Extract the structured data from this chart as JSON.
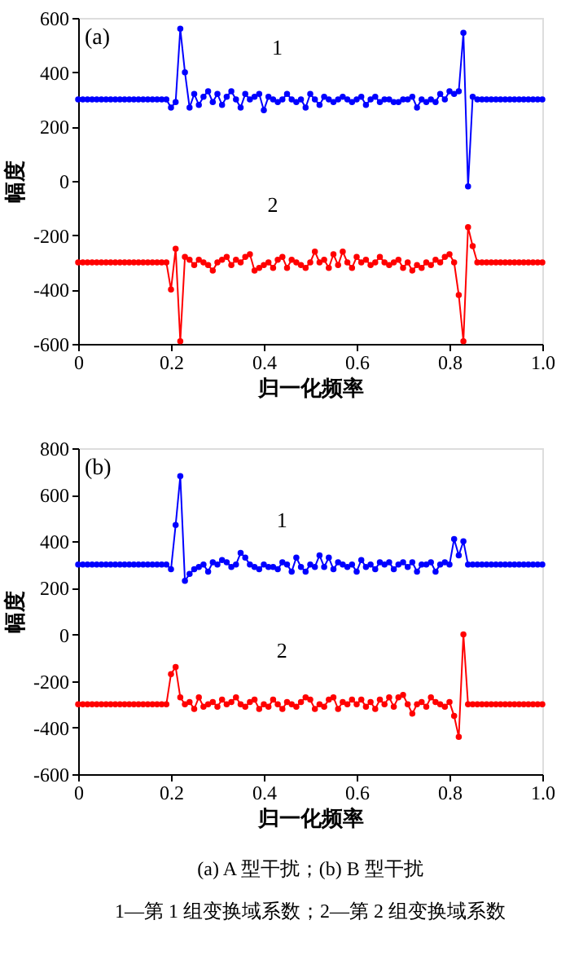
{
  "chart_data": [
    {
      "type": "line",
      "title": "(a)",
      "xlabel": "归一化频率",
      "ylabel": "幅度",
      "marker": "circle",
      "grid": false,
      "xlim": [
        0,
        1.0
      ],
      "xticks": [
        0,
        0.2,
        0.4,
        0.6,
        0.8,
        {
          "value": 1.0,
          "label": "1.0"
        }
      ],
      "ylim": [
        -600,
        600
      ],
      "yticks": [
        -600,
        -400,
        -200,
        0,
        200,
        400,
        600
      ],
      "x": [
        0,
        0.01,
        0.02,
        0.03,
        0.04,
        0.05,
        0.06,
        0.07,
        0.08,
        0.09,
        0.1,
        0.11,
        0.12,
        0.13,
        0.14,
        0.15,
        0.16,
        0.17,
        0.18,
        0.19,
        0.2,
        0.21,
        0.22,
        0.23,
        0.24,
        0.25,
        0.26,
        0.27,
        0.28,
        0.29,
        0.3,
        0.31,
        0.32,
        0.33,
        0.34,
        0.35,
        0.36,
        0.37,
        0.38,
        0.39,
        0.4,
        0.41,
        0.42,
        0.43,
        0.44,
        0.45,
        0.46,
        0.47,
        0.48,
        0.49,
        0.5,
        0.51,
        0.52,
        0.53,
        0.54,
        0.55,
        0.56,
        0.57,
        0.58,
        0.59,
        0.6,
        0.61,
        0.62,
        0.63,
        0.64,
        0.65,
        0.66,
        0.67,
        0.68,
        0.69,
        0.7,
        0.71,
        0.72,
        0.73,
        0.74,
        0.75,
        0.76,
        0.77,
        0.78,
        0.79,
        0.8,
        0.81,
        0.82,
        0.83,
        0.84,
        0.85,
        0.86,
        0.87,
        0.88,
        0.89,
        0.9,
        0.91,
        0.92,
        0.93,
        0.94,
        0.95,
        0.96,
        0.97,
        0.98,
        0.99,
        1.0
      ],
      "series": [
        {
          "color": "#0000ff",
          "values": [
            300,
            300,
            300,
            300,
            300,
            300,
            300,
            300,
            300,
            300,
            300,
            300,
            300,
            300,
            300,
            300,
            300,
            300,
            300,
            300,
            270,
            290,
            560,
            400,
            270,
            320,
            280,
            310,
            330,
            290,
            320,
            280,
            310,
            330,
            300,
            270,
            320,
            300,
            310,
            320,
            260,
            310,
            300,
            290,
            300,
            320,
            300,
            290,
            300,
            270,
            320,
            300,
            280,
            310,
            300,
            290,
            300,
            310,
            300,
            290,
            300,
            310,
            280,
            300,
            310,
            290,
            300,
            300,
            290,
            290,
            300,
            300,
            310,
            270,
            300,
            290,
            300,
            290,
            320,
            300,
            330,
            320,
            330,
            545,
            -20,
            310,
            300,
            300,
            300,
            300,
            300,
            300,
            300,
            300,
            300,
            300,
            300,
            300,
            300,
            300,
            300
          ]
        },
        {
          "color": "#ff0000",
          "values": [
            -300,
            -300,
            -300,
            -300,
            -300,
            -300,
            -300,
            -300,
            -300,
            -300,
            -300,
            -300,
            -300,
            -300,
            -300,
            -300,
            -300,
            -300,
            -300,
            -300,
            -400,
            -250,
            -590,
            -280,
            -290,
            -310,
            -290,
            -300,
            -310,
            -330,
            -300,
            -290,
            -280,
            -310,
            -290,
            -300,
            -280,
            -270,
            -330,
            -320,
            -310,
            -300,
            -320,
            -290,
            -280,
            -320,
            -290,
            -300,
            -310,
            -320,
            -300,
            -260,
            -300,
            -290,
            -320,
            -270,
            -310,
            -260,
            -300,
            -320,
            -280,
            -300,
            -290,
            -310,
            -300,
            -280,
            -300,
            -310,
            -300,
            -290,
            -320,
            -300,
            -330,
            -310,
            -320,
            -300,
            -310,
            -290,
            -300,
            -280,
            -270,
            -300,
            -420,
            -590,
            -170,
            -240,
            -300,
            -300,
            -300,
            -300,
            -300,
            -300,
            -300,
            -300,
            -300,
            -300,
            -300,
            -300,
            -300,
            -300,
            -300
          ]
        }
      ],
      "annotations": [
        {
          "text": "1",
          "x": 0.38,
          "y": 310
        },
        {
          "text": "2",
          "x": 0.37,
          "y": -270
        }
      ]
    },
    {
      "type": "line",
      "title": "(b)",
      "xlabel": "归一化频率",
      "ylabel": "幅度",
      "marker": "circle",
      "grid": false,
      "xlim": [
        0,
        1.0
      ],
      "xticks": [
        0,
        0.2,
        0.4,
        0.6,
        0.8,
        {
          "value": 1.0,
          "label": "1.0"
        }
      ],
      "ylim": [
        -600,
        800
      ],
      "yticks": [
        -600,
        -400,
        -200,
        0,
        200,
        400,
        600,
        800
      ],
      "x": [
        0,
        0.01,
        0.02,
        0.03,
        0.04,
        0.05,
        0.06,
        0.07,
        0.08,
        0.09,
        0.1,
        0.11,
        0.12,
        0.13,
        0.14,
        0.15,
        0.16,
        0.17,
        0.18,
        0.19,
        0.2,
        0.21,
        0.22,
        0.23,
        0.24,
        0.25,
        0.26,
        0.27,
        0.28,
        0.29,
        0.3,
        0.31,
        0.32,
        0.33,
        0.34,
        0.35,
        0.36,
        0.37,
        0.38,
        0.39,
        0.4,
        0.41,
        0.42,
        0.43,
        0.44,
        0.45,
        0.46,
        0.47,
        0.48,
        0.49,
        0.5,
        0.51,
        0.52,
        0.53,
        0.54,
        0.55,
        0.56,
        0.57,
        0.58,
        0.59,
        0.6,
        0.61,
        0.62,
        0.63,
        0.64,
        0.65,
        0.66,
        0.67,
        0.68,
        0.69,
        0.7,
        0.71,
        0.72,
        0.73,
        0.74,
        0.75,
        0.76,
        0.77,
        0.78,
        0.79,
        0.8,
        0.81,
        0.82,
        0.83,
        0.84,
        0.85,
        0.86,
        0.87,
        0.88,
        0.89,
        0.9,
        0.91,
        0.92,
        0.93,
        0.94,
        0.95,
        0.96,
        0.97,
        0.98,
        0.99,
        1.0
      ],
      "series": [
        {
          "color": "#0000ff",
          "values": [
            300,
            300,
            300,
            300,
            300,
            300,
            300,
            300,
            300,
            300,
            300,
            300,
            300,
            300,
            300,
            300,
            300,
            300,
            300,
            300,
            280,
            470,
            680,
            230,
            260,
            280,
            290,
            300,
            270,
            310,
            300,
            320,
            310,
            290,
            300,
            350,
            330,
            300,
            290,
            280,
            300,
            290,
            290,
            280,
            310,
            300,
            270,
            330,
            290,
            270,
            300,
            290,
            340,
            290,
            330,
            280,
            310,
            300,
            290,
            300,
            270,
            320,
            290,
            300,
            280,
            310,
            300,
            310,
            280,
            300,
            310,
            290,
            310,
            270,
            300,
            300,
            310,
            270,
            300,
            310,
            300,
            410,
            340,
            400,
            300,
            300,
            300,
            300,
            300,
            300,
            300,
            300,
            300,
            300,
            300,
            300,
            300,
            300,
            300,
            300,
            300
          ]
        },
        {
          "color": "#ff0000",
          "values": [
            -300,
            -300,
            -300,
            -300,
            -300,
            -300,
            -300,
            -300,
            -300,
            -300,
            -300,
            -300,
            -300,
            -300,
            -300,
            -300,
            -300,
            -300,
            -300,
            -300,
            -170,
            -140,
            -270,
            -300,
            -290,
            -320,
            -270,
            -310,
            -300,
            -290,
            -310,
            -280,
            -300,
            -290,
            -270,
            -300,
            -310,
            -290,
            -280,
            -320,
            -300,
            -310,
            -280,
            -300,
            -320,
            -290,
            -300,
            -310,
            -290,
            -270,
            -280,
            -320,
            -300,
            -310,
            -280,
            -270,
            -320,
            -290,
            -300,
            -280,
            -300,
            -280,
            -310,
            -290,
            -320,
            -280,
            -300,
            -270,
            -310,
            -270,
            -260,
            -300,
            -340,
            -300,
            -290,
            -310,
            -270,
            -290,
            -300,
            -310,
            -290,
            -350,
            -440,
            0,
            -300,
            -300,
            -300,
            -300,
            -300,
            -300,
            -300,
            -300,
            -300,
            -300,
            -300,
            -300,
            -300,
            -300,
            -300,
            -300,
            -300
          ]
        }
      ],
      "annotations": [
        {
          "text": "1",
          "x": 0.39,
          "y": 280
        },
        {
          "text": "2",
          "x": 0.39,
          "y": -280
        },
        "(a) A 型干扰；(b) B 型干扰",
        "1—第 1 组变换域系数；2—第 2 组变换域系数"
      ]
    }
  ]
}
